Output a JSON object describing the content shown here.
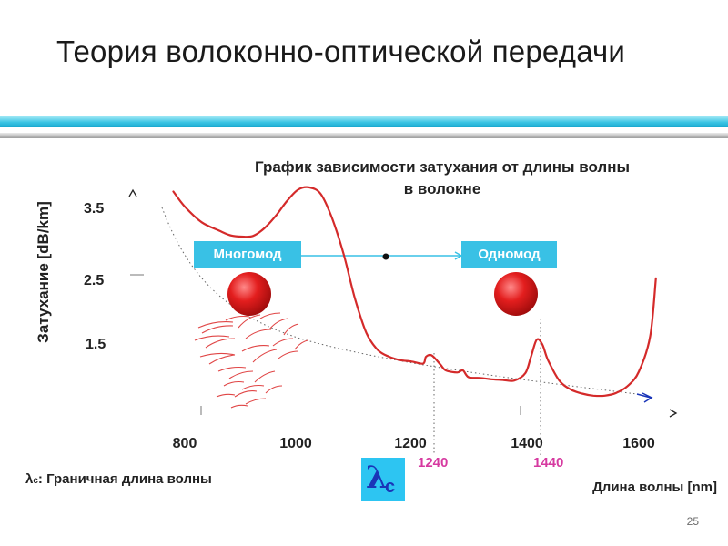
{
  "slide": {
    "title": "Теория волоконно-оптической передачи",
    "page_number": "25",
    "colors": {
      "accent_cyan": "#39c1e5",
      "curve_red": "#d42a2a",
      "marker_magenta": "#d63aa0",
      "lambda_blue": "#1a35b8"
    }
  },
  "chart_data": {
    "type": "line",
    "title_line1": "График зависимости затухания от длины волны",
    "title_line2": "в волокне",
    "ylabel": "Затухание [dB/km]",
    "xlabel": "Длина волны [nm]",
    "y_ticks": [
      "3.5",
      "2.5",
      "1.5"
    ],
    "x_ticks": [
      "800",
      "1000",
      "1200",
      "1400",
      "1600"
    ],
    "xlim": [
      800,
      1600
    ],
    "grid": false,
    "series": [
      {
        "x": [
          780,
          800,
          830,
          860,
          880,
          900,
          920,
          940,
          960,
          980,
          1000,
          1020,
          1040,
          1060,
          1080,
          1100,
          1120,
          1140,
          1160,
          1180,
          1200,
          1220,
          1225,
          1235,
          1250,
          1260,
          1280,
          1290,
          1300,
          1320,
          1340,
          1360,
          1380,
          1400,
          1410,
          1420,
          1430,
          1440,
          1460,
          1480,
          1500,
          1520,
          1540,
          1560,
          1580,
          1600,
          1620,
          1630
        ],
        "y": [
          3.72,
          3.5,
          3.27,
          3.15,
          3.08,
          3.06,
          3.07,
          3.18,
          3.36,
          3.58,
          3.75,
          3.78,
          3.68,
          3.32,
          2.8,
          2.15,
          1.65,
          1.4,
          1.3,
          1.25,
          1.23,
          1.2,
          1.3,
          1.32,
          1.19,
          1.1,
          1.07,
          1.1,
          1.0,
          0.99,
          0.97,
          0.96,
          0.95,
          1.06,
          1.3,
          1.55,
          1.48,
          1.25,
          0.95,
          0.82,
          0.76,
          0.73,
          0.73,
          0.77,
          0.87,
          1.08,
          1.6,
          2.45
        ]
      }
    ],
    "markers": {
      "lambda_c_1": "1240",
      "lambda_c_2": "1440"
    }
  },
  "modes": {
    "multimode": "Многомод",
    "singlemode": "Одномод"
  },
  "lambda_c": {
    "symbol": "λ",
    "subscript": "c"
  },
  "legend_note": {
    "symbol": "λ",
    "subscript": "c",
    "text": ": Граничная длина волны"
  }
}
